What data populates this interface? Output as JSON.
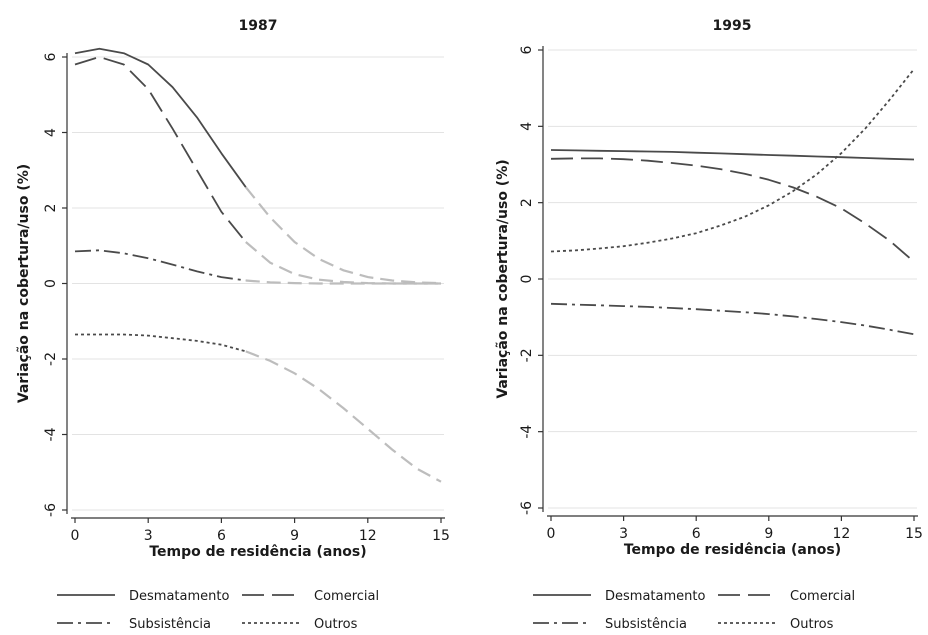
{
  "chart_data": [
    {
      "type": "line",
      "title": "1987",
      "xlabel": "Tempo de residência (anos)",
      "ylabel": "Variação na cobertura/uso (%)",
      "xlim": [
        0,
        15
      ],
      "ylim": [
        -6,
        6
      ],
      "xticks": [
        0,
        3,
        6,
        9,
        12,
        15
      ],
      "yticks": [
        -6,
        -4,
        -2,
        0,
        2,
        4,
        6
      ],
      "grid": "horizontal",
      "solid_until_x": 7,
      "x": [
        0,
        1,
        2,
        3,
        4,
        5,
        6,
        7,
        8,
        9,
        10,
        11,
        12,
        13,
        14,
        15
      ],
      "series": [
        {
          "name": "Desmatamento",
          "style": "solid",
          "values": [
            6.1,
            6.22,
            6.1,
            5.8,
            5.2,
            4.4,
            3.45,
            2.55,
            1.75,
            1.1,
            0.65,
            0.35,
            0.17,
            0.08,
            0.03,
            0.01
          ]
        },
        {
          "name": "Comercial",
          "style": "longdash",
          "values": [
            5.8,
            6.0,
            5.8,
            5.15,
            4.1,
            3.0,
            1.9,
            1.1,
            0.55,
            0.25,
            0.1,
            0.04,
            0.01,
            0.0,
            0.0,
            0.0
          ]
        },
        {
          "name": "Subsistência",
          "style": "dashdot",
          "values": [
            0.85,
            0.88,
            0.8,
            0.67,
            0.5,
            0.32,
            0.17,
            0.08,
            0.03,
            0.01,
            0.0,
            0.0,
            0.0,
            0.0,
            0.0,
            0.0
          ]
        },
        {
          "name": "Outros",
          "style": "dotted",
          "values": [
            -1.35,
            -1.35,
            -1.35,
            -1.38,
            -1.45,
            -1.52,
            -1.62,
            -1.8,
            -2.05,
            -2.38,
            -2.8,
            -3.3,
            -3.85,
            -4.4,
            -4.9,
            -5.25
          ]
        }
      ]
    },
    {
      "type": "line",
      "title": "1995",
      "xlabel": "Tempo de residência (anos)",
      "ylabel": "Variação na cobertura/uso (%)",
      "xlim": [
        0,
        15
      ],
      "ylim": [
        -6,
        6
      ],
      "xticks": [
        0,
        3,
        6,
        9,
        12,
        15
      ],
      "yticks": [
        -6,
        -4,
        -2,
        0,
        2,
        4,
        6
      ],
      "grid": "horizontal",
      "x": [
        0,
        1,
        2,
        3,
        4,
        5,
        6,
        7,
        8,
        9,
        10,
        11,
        12,
        13,
        14,
        15
      ],
      "series": [
        {
          "name": "Desmatamento",
          "style": "solid",
          "values": [
            3.38,
            3.37,
            3.36,
            3.35,
            3.34,
            3.33,
            3.31,
            3.29,
            3.27,
            3.25,
            3.23,
            3.21,
            3.19,
            3.17,
            3.15,
            3.13
          ]
        },
        {
          "name": "Comercial",
          "style": "longdash",
          "values": [
            3.15,
            3.16,
            3.16,
            3.14,
            3.1,
            3.04,
            2.97,
            2.88,
            2.76,
            2.6,
            2.4,
            2.15,
            1.85,
            1.45,
            1.0,
            0.45
          ]
        },
        {
          "name": "Subsistência",
          "style": "dashdot",
          "values": [
            -0.65,
            -0.67,
            -0.69,
            -0.71,
            -0.73,
            -0.76,
            -0.79,
            -0.83,
            -0.87,
            -0.92,
            -0.98,
            -1.05,
            -1.13,
            -1.22,
            -1.33,
            -1.45
          ]
        },
        {
          "name": "Outros",
          "style": "dotted",
          "values": [
            0.72,
            0.75,
            0.8,
            0.86,
            0.95,
            1.06,
            1.2,
            1.4,
            1.63,
            1.93,
            2.3,
            2.75,
            3.3,
            3.95,
            4.7,
            5.5
          ]
        }
      ]
    }
  ],
  "legend": {
    "entries": [
      {
        "label": "Desmatamento",
        "style": "solid"
      },
      {
        "label": "Comercial",
        "style": "longdash"
      },
      {
        "label": "Subsistência",
        "style": "dashdot"
      },
      {
        "label": "Outros",
        "style": "dotted"
      }
    ]
  }
}
